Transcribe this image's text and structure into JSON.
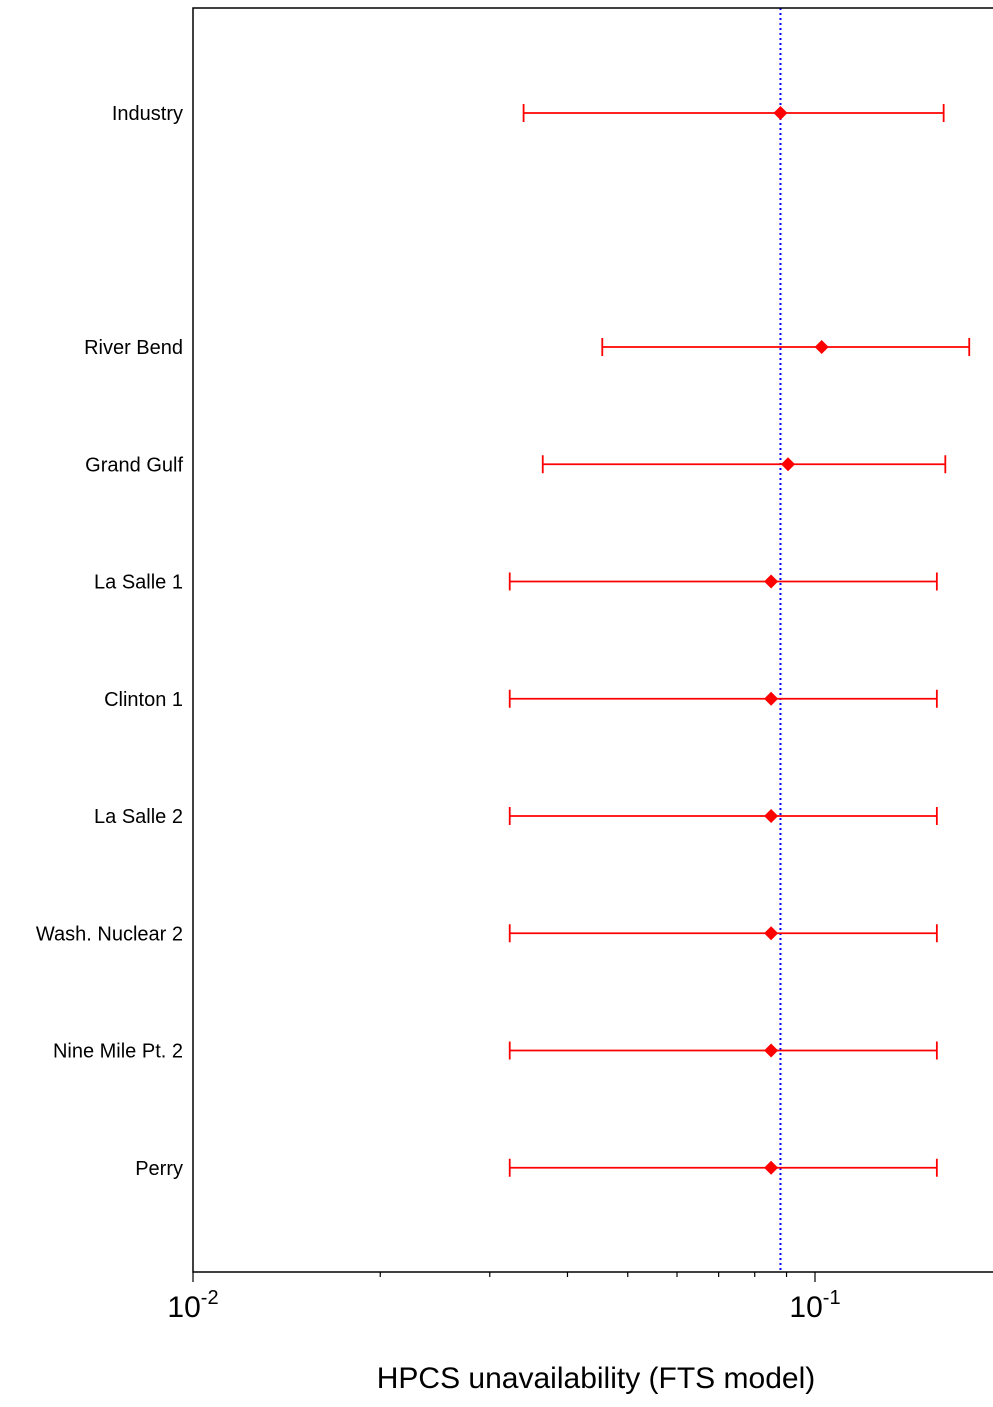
{
  "chart_data": {
    "type": "scatter",
    "subtype": "interval-plot",
    "title": "",
    "xlabel": "HPCS unavailability (FTS model)",
    "ylabel": "",
    "xscale": "log",
    "xlim": [
      0.01,
      0.19
    ],
    "x_ticks": [
      {
        "value": 0.01,
        "base": "10",
        "exponent": "-2"
      },
      {
        "value": 0.1,
        "base": "10",
        "exponent": "-1"
      }
    ],
    "reference_line": {
      "value": 0.088,
      "color": "#0000ff",
      "style": "dotted"
    },
    "colors": {
      "interval": "#ff0000",
      "point": "#ff0000",
      "axis": "#000000"
    },
    "categories": [
      {
        "label": "Industry",
        "low": 0.034,
        "point": 0.088,
        "high": 0.161
      },
      {
        "label": "River Bend",
        "low": 0.0455,
        "point": 0.1025,
        "high": 0.177
      },
      {
        "label": "Grand Gulf",
        "low": 0.0365,
        "point": 0.0905,
        "high": 0.162
      },
      {
        "label": "La Salle 1",
        "low": 0.0323,
        "point": 0.085,
        "high": 0.157
      },
      {
        "label": "Clinton 1",
        "low": 0.0323,
        "point": 0.085,
        "high": 0.157
      },
      {
        "label": "La Salle 2",
        "low": 0.0323,
        "point": 0.085,
        "high": 0.157
      },
      {
        "label": "Wash. Nuclear 2",
        "low": 0.0323,
        "point": 0.085,
        "high": 0.157
      },
      {
        "label": "Nine Mile Pt. 2",
        "low": 0.0323,
        "point": 0.085,
        "high": 0.157
      },
      {
        "label": "Perry",
        "low": 0.0323,
        "point": 0.085,
        "high": 0.157
      }
    ]
  }
}
